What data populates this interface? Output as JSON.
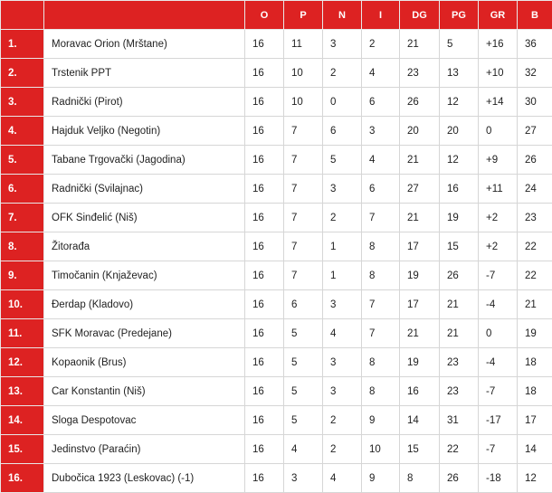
{
  "columns": [
    "",
    "",
    "O",
    "P",
    "N",
    "I",
    "DG",
    "PG",
    "GR",
    "B"
  ],
  "rows": [
    [
      "1.",
      "Moravac Orion (Mrštane)",
      "16",
      "11",
      "3",
      "2",
      "21",
      "5",
      "+16",
      "36"
    ],
    [
      "2.",
      "Trstenik PPT",
      "16",
      "10",
      "2",
      "4",
      "23",
      "13",
      "+10",
      "32"
    ],
    [
      "3.",
      "Radnički (Pirot)",
      "16",
      "10",
      "0",
      "6",
      "26",
      "12",
      "+14",
      "30"
    ],
    [
      "4.",
      "Hajduk Veljko (Negotin)",
      "16",
      "7",
      "6",
      "3",
      "20",
      "20",
      "0",
      "27"
    ],
    [
      "5.",
      "Tabane Trgovački (Jagodina)",
      "16",
      "7",
      "5",
      "4",
      "21",
      "12",
      "+9",
      "26"
    ],
    [
      "6.",
      "Radnički (Svilajnac)",
      "16",
      "7",
      "3",
      "6",
      "27",
      "16",
      "+11",
      "24"
    ],
    [
      "7.",
      "OFK Sinđelić (Niš)",
      "16",
      "7",
      "2",
      "7",
      "21",
      "19",
      "+2",
      "23"
    ],
    [
      "8.",
      "Žitorađa",
      "16",
      "7",
      "1",
      "8",
      "17",
      "15",
      "+2",
      "22"
    ],
    [
      "9.",
      "Timočanin (Knjaževac)",
      "16",
      "7",
      "1",
      "8",
      "19",
      "26",
      "-7",
      "22"
    ],
    [
      "10.",
      "Đerdap (Kladovo)",
      "16",
      "6",
      "3",
      "7",
      "17",
      "21",
      "-4",
      "21"
    ],
    [
      "11.",
      "SFK Moravac (Predejane)",
      "16",
      "5",
      "4",
      "7",
      "21",
      "21",
      "0",
      "19"
    ],
    [
      "12.",
      "Kopaonik (Brus)",
      "16",
      "5",
      "3",
      "8",
      "19",
      "23",
      "-4",
      "18"
    ],
    [
      "13.",
      "Car Konstantin (Niš)",
      "16",
      "5",
      "3",
      "8",
      "16",
      "23",
      "-7",
      "18"
    ],
    [
      "14.",
      "Sloga Despotovac",
      "16",
      "5",
      "2",
      "9",
      "14",
      "31",
      "-17",
      "17"
    ],
    [
      "15.",
      "Jedinstvo (Paraćin)",
      "16",
      "4",
      "2",
      "10",
      "15",
      "22",
      "-7",
      "14"
    ],
    [
      "16.",
      "Dubočica 1923 (Leskovac) (-1)",
      "16",
      "3",
      "4",
      "9",
      "8",
      "26",
      "-18",
      "12"
    ]
  ],
  "colors": {
    "header": "#dd2222",
    "border": "#d6d6d6"
  }
}
